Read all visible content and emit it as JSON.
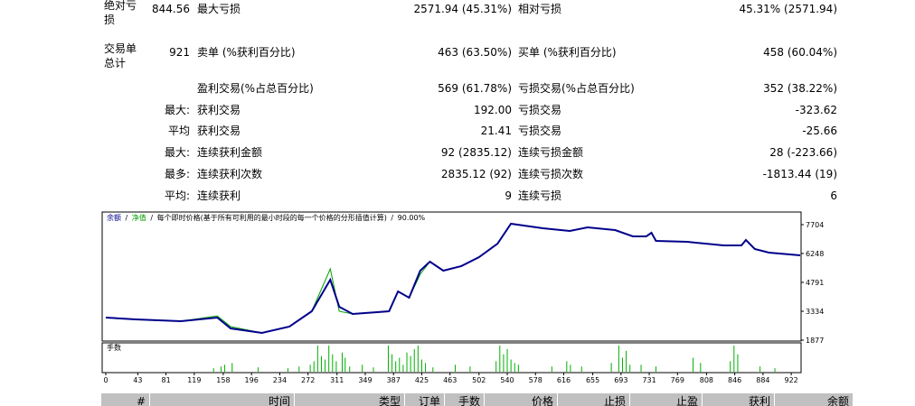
{
  "stats": {
    "rows": [
      [
        "绝对亏损",
        "844.56",
        "最大亏损",
        "2571.94 (45.31%)",
        "相对亏损",
        "45.31% (2571.94)"
      ],
      [
        "交易单总计",
        "921",
        "卖单 (%获利百分比)",
        "463 (63.50%)",
        "买单 (%获利百分比)",
        "458 (60.04%)"
      ],
      [
        null,
        null,
        "盈利交易(%占总百分比)",
        "569 (61.78%)",
        "亏损交易(%占总百分比)",
        "352 (38.22%)"
      ],
      [
        null,
        "最大:",
        "获利交易",
        "192.00",
        "亏损交易",
        "-323.62"
      ],
      [
        null,
        "平均",
        "获利交易",
        "21.41",
        "亏损交易",
        "-25.66"
      ],
      [
        null,
        "最大:",
        "连续获利金额",
        "92 (2835.12)",
        "连续亏损金额",
        "28 (-223.66)"
      ],
      [
        null,
        "最多:",
        "连续获利次数",
        "2835.12 (92)",
        "连续亏损次数",
        "-1813.44 (19)"
      ],
      [
        null,
        "平均:",
        "连续获利",
        "9",
        "连续亏损",
        "6"
      ]
    ]
  },
  "chart_data": {
    "type": "line",
    "separator": "/",
    "description": "每个即时价格(基于所有可利用的最小时段的每一个价格的分形插值计算)",
    "quality": "90.00%",
    "x": [
      0,
      40,
      101,
      150,
      168,
      210,
      247,
      277,
      302,
      314,
      332,
      381,
      393,
      408,
      423,
      436,
      454,
      478,
      502,
      527,
      545,
      588,
      624,
      648,
      685,
      709,
      727,
      734,
      740,
      782,
      831,
      855,
      861,
      873,
      892,
      934
    ],
    "series": [
      {
        "name": "余额",
        "color": "#00008b",
        "values": [
          3015,
          2924,
          2833,
          3015,
          2469,
          2241,
          2560,
          3334,
          4927,
          3561,
          3197,
          3334,
          4335,
          4016,
          5382,
          5837,
          5382,
          5610,
          6065,
          6748,
          7749,
          7521,
          7385,
          7567,
          7430,
          7112,
          7112,
          7294,
          6884,
          6839,
          6657,
          6657,
          6930,
          6475,
          6293,
          6156
        ]
      },
      {
        "name": "净值",
        "color": "#00a000",
        "values": [
          3015,
          2924,
          2833,
          3100,
          2560,
          2241,
          2560,
          3334,
          5473,
          3334,
          3197,
          3334,
          4335,
          4016,
          5200,
          5837,
          5382,
          5610,
          6065,
          6748,
          7749,
          7521,
          7385,
          7567,
          7430,
          7112,
          7112,
          7294,
          6884,
          6839,
          6657,
          6657,
          6930,
          6475,
          6293,
          6156
        ]
      }
    ],
    "xlim": [
      0,
      934
    ],
    "ylim": [
      1877,
      8113
    ],
    "yticks": [
      1877,
      3334,
      4791,
      6248,
      7704
    ],
    "xticks": [
      0,
      43,
      81,
      119,
      158,
      196,
      234,
      272,
      311,
      349,
      387,
      425,
      463,
      502,
      540,
      578,
      616,
      655,
      693,
      731,
      769,
      808,
      846,
      884,
      922
    ],
    "volume": {
      "name": "手数",
      "color": "#00b000",
      "ylim": [
        0,
        30
      ],
      "x": [
        145,
        155,
        160,
        170,
        205,
        245,
        260,
        275,
        280,
        285,
        290,
        295,
        300,
        305,
        310,
        318,
        322,
        328,
        345,
        360,
        380,
        385,
        390,
        395,
        400,
        405,
        410,
        415,
        420,
        425,
        430,
        440,
        470,
        490,
        525,
        530,
        535,
        540,
        545,
        550,
        555,
        600,
        620,
        625,
        640,
        680,
        690,
        695,
        700,
        705,
        720,
        740,
        790,
        800,
        840,
        845,
        850,
        880,
        900
      ],
      "values": [
        4,
        6,
        8,
        10,
        5,
        4,
        6,
        8,
        12,
        30,
        18,
        14,
        30,
        20,
        12,
        22,
        16,
        6,
        8,
        5,
        30,
        20,
        12,
        16,
        8,
        22,
        18,
        26,
        30,
        14,
        10,
        5,
        8,
        6,
        12,
        30,
        20,
        26,
        14,
        10,
        8,
        6,
        12,
        8,
        6,
        10,
        30,
        16,
        24,
        8,
        8,
        6,
        16,
        10,
        12,
        30,
        20,
        6,
        4
      ]
    }
  },
  "table": {
    "header": [
      "#",
      "时间",
      "类型",
      "订单",
      "手数",
      "价格",
      "止损",
      "止盈",
      "获利",
      "余额"
    ]
  }
}
